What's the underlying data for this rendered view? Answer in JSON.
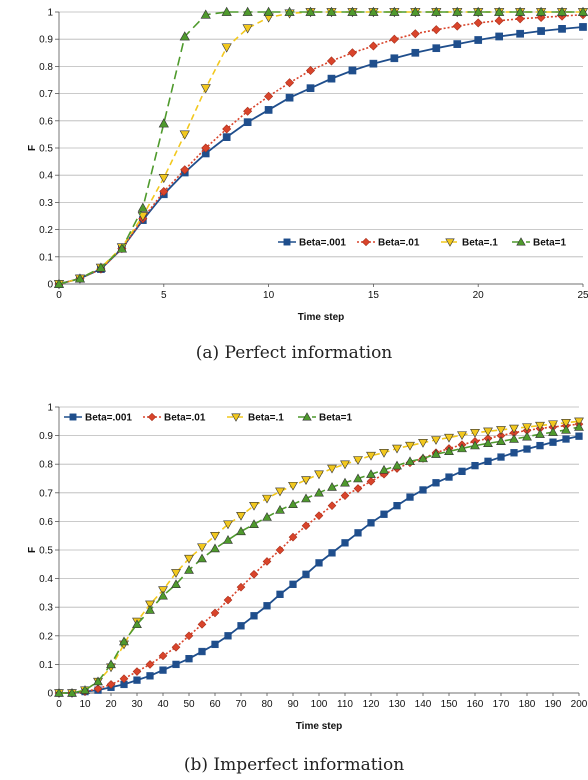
{
  "chart_data": [
    {
      "type": "line",
      "xlabel": "Time step",
      "ylabel": "F",
      "xlim": [
        0,
        25
      ],
      "ylim": [
        0,
        1
      ],
      "x_ticks": [
        0,
        5,
        10,
        15,
        20,
        25
      ],
      "y_ticks": [
        0,
        0.1,
        0.2,
        0.3,
        0.4,
        0.5,
        0.6,
        0.7,
        0.8,
        0.9,
        1
      ],
      "grid": "horizontal",
      "legend_position": "right-middle",
      "caption": "(a) Perfect information",
      "x": [
        0,
        1,
        2,
        3,
        4,
        5,
        6,
        7,
        8,
        9,
        10,
        11,
        12,
        13,
        14,
        15,
        16,
        17,
        18,
        19,
        20,
        21,
        22,
        23,
        24,
        25
      ],
      "series": [
        {
          "name": "Beta=.001",
          "color": "#1f4e8c",
          "marker": "square",
          "dash": "solid",
          "values": [
            0,
            0.02,
            0.055,
            0.13,
            0.235,
            0.33,
            0.41,
            0.48,
            0.54,
            0.595,
            0.64,
            0.685,
            0.72,
            0.755,
            0.785,
            0.81,
            0.83,
            0.85,
            0.867,
            0.882,
            0.897,
            0.91,
            0.92,
            0.93,
            0.938,
            0.945
          ]
        },
        {
          "name": "Beta=.01",
          "color": "#d9442b",
          "marker": "diamond",
          "dash": "dot",
          "values": [
            0,
            0.02,
            0.055,
            0.13,
            0.24,
            0.34,
            0.42,
            0.5,
            0.57,
            0.635,
            0.69,
            0.74,
            0.785,
            0.82,
            0.85,
            0.875,
            0.9,
            0.92,
            0.935,
            0.948,
            0.96,
            0.968,
            0.975,
            0.98,
            0.985,
            0.99
          ]
        },
        {
          "name": "Beta=.1",
          "color": "#f2c81e",
          "marker": "triangle-down",
          "dash": "dash",
          "values": [
            0,
            0.02,
            0.06,
            0.135,
            0.25,
            0.39,
            0.55,
            0.72,
            0.87,
            0.94,
            0.98,
            0.995,
            1,
            1,
            1,
            1,
            1,
            1,
            1,
            1,
            1,
            1,
            1,
            1,
            1,
            1
          ]
        },
        {
          "name": "Beta=1",
          "color": "#4f9a2d",
          "marker": "triangle-up",
          "dash": "longdash",
          "values": [
            0,
            0.02,
            0.06,
            0.13,
            0.28,
            0.59,
            0.91,
            0.99,
            1,
            1,
            1,
            1,
            1,
            1,
            1,
            1,
            1,
            1,
            1,
            1,
            1,
            1,
            1,
            1,
            1,
            1
          ]
        }
      ]
    },
    {
      "type": "line",
      "xlabel": "Time step",
      "ylabel": "F",
      "xlim": [
        0,
        200
      ],
      "ylim": [
        0,
        1
      ],
      "x_ticks": [
        0,
        10,
        20,
        30,
        40,
        50,
        60,
        70,
        80,
        90,
        100,
        110,
        120,
        130,
        140,
        150,
        160,
        170,
        180,
        190,
        200
      ],
      "y_ticks": [
        0,
        0.1,
        0.2,
        0.3,
        0.4,
        0.5,
        0.6,
        0.7,
        0.8,
        0.9,
        1
      ],
      "grid": "horizontal",
      "legend_position": "top-left",
      "caption": "(b) Imperfect information",
      "x": [
        0,
        5,
        10,
        15,
        20,
        25,
        30,
        35,
        40,
        45,
        50,
        55,
        60,
        65,
        70,
        75,
        80,
        85,
        90,
        95,
        100,
        105,
        110,
        115,
        120,
        125,
        130,
        135,
        140,
        145,
        150,
        155,
        160,
        165,
        170,
        175,
        180,
        185,
        190,
        195,
        200
      ],
      "series": [
        {
          "name": "Beta=.001",
          "color": "#1f4e8c",
          "marker": "square",
          "dash": "solid",
          "values": [
            0,
            0,
            0.005,
            0.01,
            0.02,
            0.03,
            0.045,
            0.06,
            0.08,
            0.1,
            0.12,
            0.145,
            0.17,
            0.2,
            0.235,
            0.27,
            0.305,
            0.345,
            0.38,
            0.415,
            0.455,
            0.49,
            0.525,
            0.56,
            0.595,
            0.625,
            0.655,
            0.685,
            0.71,
            0.735,
            0.755,
            0.775,
            0.795,
            0.81,
            0.825,
            0.84,
            0.853,
            0.865,
            0.877,
            0.888,
            0.898
          ]
        },
        {
          "name": "Beta=.01",
          "color": "#d9442b",
          "marker": "diamond",
          "dash": "dot",
          "values": [
            0,
            0,
            0.005,
            0.015,
            0.03,
            0.05,
            0.075,
            0.1,
            0.13,
            0.16,
            0.2,
            0.24,
            0.28,
            0.325,
            0.37,
            0.415,
            0.46,
            0.5,
            0.545,
            0.585,
            0.62,
            0.655,
            0.69,
            0.715,
            0.74,
            0.765,
            0.785,
            0.805,
            0.82,
            0.84,
            0.855,
            0.868,
            0.88,
            0.89,
            0.9,
            0.91,
            0.918,
            0.925,
            0.93,
            0.935,
            0.94
          ]
        },
        {
          "name": "Beta=.1",
          "color": "#f2c81e",
          "marker": "triangle-down",
          "dash": "dash",
          "values": [
            0,
            0,
            0.01,
            0.04,
            0.09,
            0.17,
            0.25,
            0.31,
            0.36,
            0.42,
            0.47,
            0.51,
            0.55,
            0.59,
            0.62,
            0.655,
            0.68,
            0.705,
            0.725,
            0.745,
            0.765,
            0.785,
            0.8,
            0.815,
            0.83,
            0.84,
            0.855,
            0.865,
            0.875,
            0.885,
            0.893,
            0.902,
            0.91,
            0.915,
            0.92,
            0.925,
            0.93,
            0.935,
            0.94,
            0.945,
            0.95
          ]
        },
        {
          "name": "Beta=1",
          "color": "#4f9a2d",
          "marker": "triangle-up",
          "dash": "longdash",
          "values": [
            0,
            0,
            0.01,
            0.04,
            0.1,
            0.18,
            0.24,
            0.29,
            0.34,
            0.38,
            0.43,
            0.47,
            0.505,
            0.535,
            0.565,
            0.59,
            0.615,
            0.64,
            0.66,
            0.68,
            0.7,
            0.72,
            0.735,
            0.75,
            0.765,
            0.78,
            0.795,
            0.81,
            0.82,
            0.835,
            0.845,
            0.855,
            0.865,
            0.873,
            0.88,
            0.888,
            0.896,
            0.905,
            0.912,
            0.92,
            0.93
          ]
        }
      ]
    }
  ]
}
